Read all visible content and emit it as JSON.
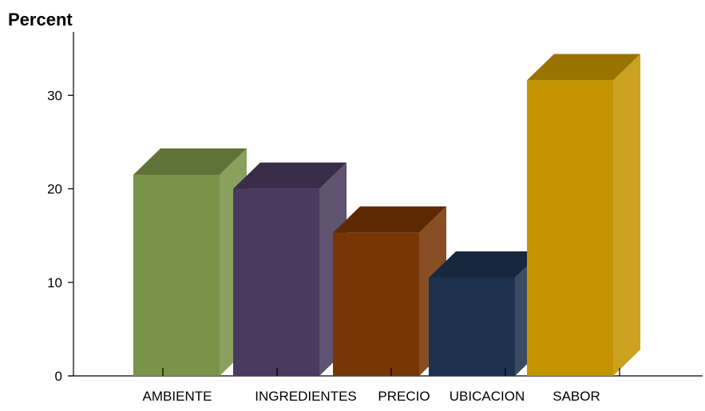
{
  "chart_data": {
    "type": "bar",
    "ylabel": "Percent",
    "xlabel": "",
    "categories": [
      "AMBIENTE",
      "INGREDIENTES",
      "PRECIO",
      "UBICACION",
      "SABOR"
    ],
    "values": [
      21.5,
      20.0,
      15.3,
      10.5,
      31.6
    ],
    "ylim": [
      0,
      36
    ],
    "yticks": [
      0,
      10,
      20,
      30
    ],
    "grid": false,
    "style": "3d",
    "colors": [
      "#7a9448",
      "#4a3a5e",
      "#773605",
      "#1e324f",
      "#c49500"
    ]
  }
}
